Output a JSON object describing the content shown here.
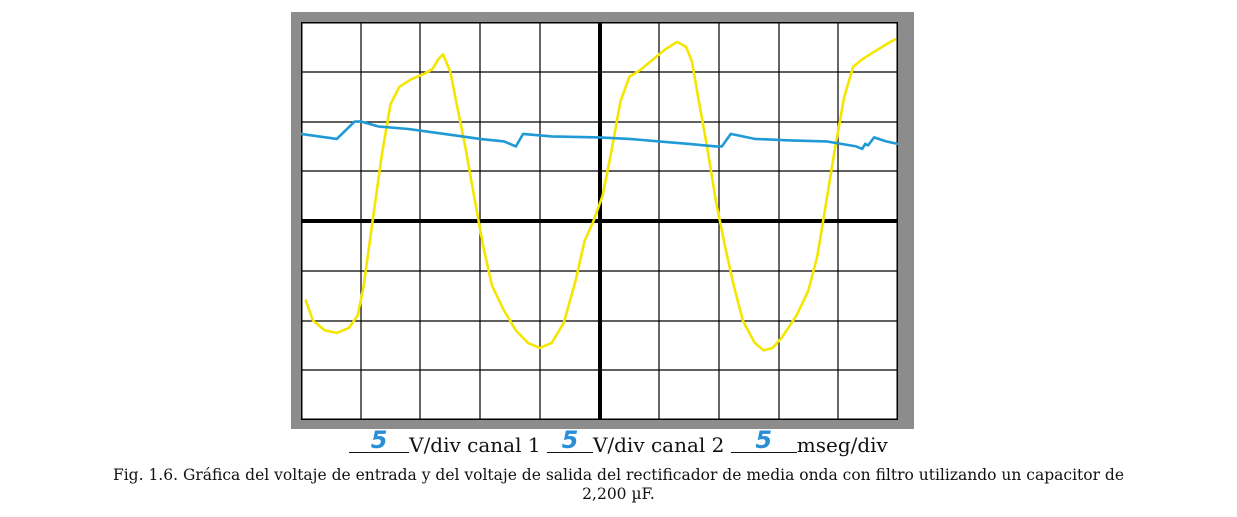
{
  "settings": {
    "ch1_value": "5",
    "ch1_label": "V/div canal 1",
    "ch2_value": "5",
    "ch2_label": "V/div canal 2",
    "time_value": "5",
    "time_label": "mseg/div"
  },
  "caption": {
    "line1": "Fig. 1.6. Gráfica del voltaje de entrada y del voltaje de salida del rectificador de media onda con filtro utilizando un capacitor de",
    "line2": "2,200 µF."
  },
  "colors": {
    "input_trace": "#f5e600",
    "output_trace": "#1f9ad6",
    "grid": "#000000",
    "frame": "#8c8c8c"
  },
  "chart_data": {
    "type": "line",
    "grid": true,
    "x_divisions": 10,
    "y_divisions": 8,
    "xlim": [
      0,
      10
    ],
    "ylim": [
      -4,
      4
    ],
    "series": [
      {
        "key": "input",
        "color": "#f5e600",
        "points": [
          [
            0.08,
            -1.6
          ],
          [
            0.2,
            -2.0
          ],
          [
            0.4,
            -2.2
          ],
          [
            0.6,
            -2.25
          ],
          [
            0.8,
            -2.15
          ],
          [
            0.95,
            -1.9
          ],
          [
            1.05,
            -1.3
          ],
          [
            1.2,
            0.0
          ],
          [
            1.35,
            1.3
          ],
          [
            1.5,
            2.35
          ],
          [
            1.65,
            2.7
          ],
          [
            1.85,
            2.85
          ],
          [
            2.05,
            2.95
          ],
          [
            2.2,
            3.05
          ],
          [
            2.3,
            3.25
          ],
          [
            2.38,
            3.35
          ],
          [
            2.5,
            3.0
          ],
          [
            2.6,
            2.4
          ],
          [
            2.75,
            1.5
          ],
          [
            2.9,
            0.5
          ],
          [
            3.05,
            -0.5
          ],
          [
            3.2,
            -1.3
          ],
          [
            3.4,
            -1.8
          ],
          [
            3.6,
            -2.2
          ],
          [
            3.8,
            -2.45
          ],
          [
            4.0,
            -2.55
          ],
          [
            4.2,
            -2.45
          ],
          [
            4.4,
            -2.05
          ],
          [
            4.6,
            -1.2
          ],
          [
            4.75,
            -0.4
          ],
          [
            4.9,
            0.0
          ],
          [
            5.05,
            0.5
          ],
          [
            5.2,
            1.4
          ],
          [
            5.35,
            2.4
          ],
          [
            5.5,
            2.9
          ],
          [
            5.7,
            3.05
          ],
          [
            5.9,
            3.25
          ],
          [
            6.1,
            3.45
          ],
          [
            6.3,
            3.6
          ],
          [
            6.45,
            3.5
          ],
          [
            6.55,
            3.2
          ],
          [
            6.65,
            2.5
          ],
          [
            6.8,
            1.5
          ],
          [
            6.95,
            0.4
          ],
          [
            7.1,
            -0.5
          ],
          [
            7.25,
            -1.3
          ],
          [
            7.4,
            -2.0
          ],
          [
            7.6,
            -2.45
          ],
          [
            7.75,
            -2.6
          ],
          [
            7.9,
            -2.55
          ],
          [
            8.05,
            -2.35
          ],
          [
            8.3,
            -1.9
          ],
          [
            8.5,
            -1.4
          ],
          [
            8.65,
            -0.7
          ],
          [
            8.8,
            0.4
          ],
          [
            8.95,
            1.5
          ],
          [
            9.1,
            2.5
          ],
          [
            9.25,
            3.1
          ],
          [
            9.4,
            3.25
          ],
          [
            9.6,
            3.4
          ],
          [
            9.8,
            3.55
          ],
          [
            9.95,
            3.65
          ]
        ]
      },
      {
        "key": "output",
        "color": "#1f9ad6",
        "points": [
          [
            0.0,
            1.75
          ],
          [
            0.3,
            1.7
          ],
          [
            0.6,
            1.65
          ],
          [
            0.9,
            2.0
          ],
          [
            1.0,
            2.0
          ],
          [
            1.3,
            1.9
          ],
          [
            1.8,
            1.85
          ],
          [
            2.4,
            1.75
          ],
          [
            3.0,
            1.65
          ],
          [
            3.4,
            1.6
          ],
          [
            3.6,
            1.5
          ],
          [
            3.72,
            1.75
          ],
          [
            4.2,
            1.7
          ],
          [
            5.0,
            1.68
          ],
          [
            5.5,
            1.65
          ],
          [
            6.0,
            1.6
          ],
          [
            6.5,
            1.55
          ],
          [
            6.95,
            1.5
          ],
          [
            7.05,
            1.5
          ],
          [
            7.2,
            1.75
          ],
          [
            7.6,
            1.65
          ],
          [
            8.2,
            1.62
          ],
          [
            8.8,
            1.6
          ],
          [
            9.3,
            1.5
          ],
          [
            9.4,
            1.45
          ],
          [
            9.45,
            1.55
          ],
          [
            9.5,
            1.52
          ],
          [
            9.6,
            1.68
          ],
          [
            9.8,
            1.6
          ],
          [
            10.0,
            1.55
          ]
        ]
      }
    ]
  }
}
